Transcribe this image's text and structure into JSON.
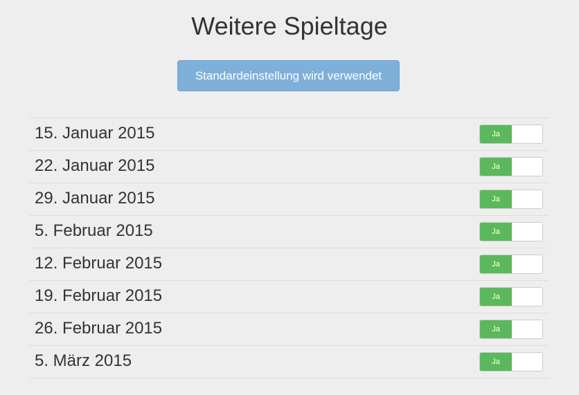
{
  "header": {
    "title": "Weitere Spieltage"
  },
  "default_button": {
    "label": "Standardeinstellung wird verwendet"
  },
  "matchdays": [
    {
      "date": "15. Januar 2015",
      "toggle_label": "Ja",
      "enabled": true
    },
    {
      "date": "22. Januar 2015",
      "toggle_label": "Ja",
      "enabled": true
    },
    {
      "date": "29. Januar 2015",
      "toggle_label": "Ja",
      "enabled": true
    },
    {
      "date": "5. Februar 2015",
      "toggle_label": "Ja",
      "enabled": true
    },
    {
      "date": "12. Februar 2015",
      "toggle_label": "Ja",
      "enabled": true
    },
    {
      "date": "19. Februar 2015",
      "toggle_label": "Ja",
      "enabled": true
    },
    {
      "date": "26. Februar 2015",
      "toggle_label": "Ja",
      "enabled": true
    },
    {
      "date": "5. März 2015",
      "toggle_label": "Ja",
      "enabled": true
    }
  ],
  "colors": {
    "background": "#eeeeee",
    "button": "#7eb0da",
    "toggle_on": "#5cb85c"
  }
}
